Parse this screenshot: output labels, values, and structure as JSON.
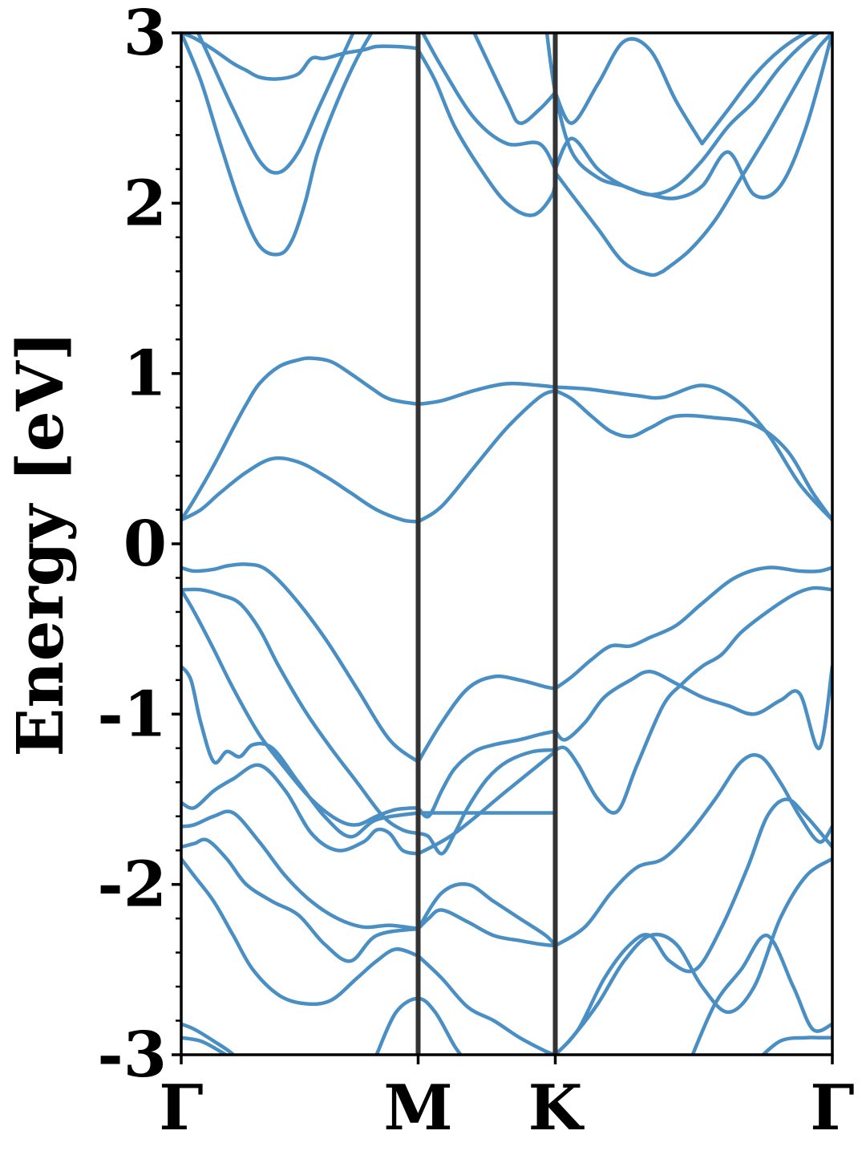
{
  "chart_data": {
    "type": "line",
    "ylabel": "Energy [eV]",
    "ylim": [
      -3,
      3
    ],
    "yticks": [
      "3",
      "2",
      "1",
      "0",
      "-1",
      "-2",
      "-3"
    ],
    "ytick_values": [
      3,
      2,
      1,
      0,
      -1,
      -2,
      -3
    ],
    "kpoint_labels": [
      "Γ",
      "M",
      "K",
      "Γ"
    ],
    "kpoint_positions": [
      0,
      0.3639,
      0.5745,
      1
    ],
    "grid": false,
    "colors": {
      "band": "#4a8fc4",
      "kpoint_line": "#333333",
      "frame": "#000000"
    },
    "series": [
      {
        "x": [
          0,
          0.02,
          0.05,
          0.08,
          0.1,
          0.12,
          0.15,
          0.18,
          0.2,
          0.23,
          0.26,
          0.29,
          0.32,
          0.3639
        ],
        "values": [
          0.14,
          0.26,
          0.46,
          0.68,
          0.82,
          0.94,
          1.04,
          1.08,
          1.09,
          1.07,
          1.0,
          0.92,
          0.85,
          0.82
        ]
      },
      {
        "x": [
          0.3639,
          0.4,
          0.45,
          0.5,
          0.55,
          0.5745
        ],
        "values": [
          0.82,
          0.84,
          0.9,
          0.94,
          0.93,
          0.92
        ]
      },
      {
        "x": [
          0.5745,
          0.62,
          0.66,
          0.7,
          0.74,
          0.8,
          0.85,
          0.9,
          0.95,
          1
        ],
        "values": [
          0.92,
          0.91,
          0.89,
          0.87,
          0.86,
          0.93,
          0.85,
          0.65,
          0.35,
          0.14
        ]
      },
      {
        "x": [
          0,
          0.03,
          0.06,
          0.1,
          0.14,
          0.18,
          0.22,
          0.26,
          0.3,
          0.34,
          0.3639
        ],
        "values": [
          0.14,
          0.2,
          0.3,
          0.42,
          0.5,
          0.48,
          0.4,
          0.3,
          0.2,
          0.14,
          0.13
        ]
      },
      {
        "x": [
          0.3639,
          0.4,
          0.45,
          0.5,
          0.55,
          0.5745
        ],
        "values": [
          0.13,
          0.22,
          0.45,
          0.68,
          0.86,
          0.9
        ]
      },
      {
        "x": [
          0.5745,
          0.6,
          0.63,
          0.66,
          0.69,
          0.72,
          0.76,
          0.82,
          0.88,
          0.93,
          0.97,
          1
        ],
        "values": [
          0.9,
          0.85,
          0.75,
          0.66,
          0.63,
          0.68,
          0.75,
          0.74,
          0.7,
          0.55,
          0.3,
          0.14
        ]
      },
      {
        "x": [
          0,
          0.02,
          0.05,
          0.07,
          0.1,
          0.13,
          0.17,
          0.22,
          0.27,
          0.32,
          0.3639
        ],
        "values": [
          -0.14,
          -0.16,
          -0.15,
          -0.13,
          -0.12,
          -0.15,
          -0.3,
          -0.55,
          -0.85,
          -1.15,
          -1.28
        ]
      },
      {
        "x": [
          0.3639,
          0.4,
          0.44,
          0.48,
          0.52,
          0.56,
          0.5745
        ],
        "values": [
          -1.28,
          -1.05,
          -0.85,
          -0.78,
          -0.8,
          -0.84,
          -0.85
        ]
      },
      {
        "x": [
          0.5745,
          0.6,
          0.63,
          0.66,
          0.69,
          0.72,
          0.76,
          0.8,
          0.85,
          0.9,
          0.95,
          0.98,
          1
        ],
        "values": [
          -0.85,
          -0.78,
          -0.68,
          -0.6,
          -0.6,
          -0.55,
          -0.48,
          -0.35,
          -0.2,
          -0.14,
          -0.16,
          -0.16,
          -0.14
        ]
      },
      {
        "x": [
          0,
          0.03,
          0.06,
          0.09,
          0.12,
          0.15,
          0.19,
          0.23,
          0.27,
          0.31,
          0.34,
          0.3639
        ],
        "values": [
          -0.27,
          -0.27,
          -0.3,
          -0.35,
          -0.5,
          -0.72,
          -0.98,
          -1.2,
          -1.4,
          -1.6,
          -1.68,
          -1.7
        ]
      },
      {
        "x": [
          0.3639,
          0.38,
          0.4,
          0.42,
          0.44,
          0.47,
          0.5,
          0.54,
          0.5745
        ],
        "values": [
          -1.7,
          -1.72,
          -1.82,
          -1.7,
          -1.55,
          -1.38,
          -1.28,
          -1.22,
          -1.21
        ]
      },
      {
        "x": [
          0.5745,
          0.59,
          0.61,
          0.64,
          0.67,
          0.7,
          0.74,
          0.77,
          0.8,
          0.83,
          0.86,
          0.9,
          0.94,
          0.97,
          1
        ],
        "values": [
          -1.21,
          -1.2,
          -1.3,
          -1.5,
          -1.57,
          -1.3,
          -0.95,
          -0.82,
          -0.72,
          -0.65,
          -0.52,
          -0.4,
          -0.3,
          -0.26,
          -0.27
        ]
      },
      {
        "x": [
          0,
          0.02,
          0.05,
          0.08,
          0.12,
          0.16,
          0.2,
          0.24,
          0.27,
          0.3,
          0.33,
          0.3639
        ],
        "values": [
          -0.27,
          -0.4,
          -0.62,
          -0.85,
          -1.12,
          -1.32,
          -1.5,
          -1.62,
          -1.65,
          -1.6,
          -1.56,
          -1.55
        ]
      },
      {
        "x": [
          0.3639,
          0.38,
          0.4,
          0.42,
          0.45,
          0.48,
          0.52,
          0.55,
          0.5745
        ],
        "values": [
          -1.55,
          -1.6,
          -1.45,
          -1.32,
          -1.22,
          -1.18,
          -1.15,
          -1.12,
          -1.1
        ]
      },
      {
        "x": [
          0.5745,
          0.59,
          0.62,
          0.65,
          0.69,
          0.72,
          0.76,
          0.8,
          0.84,
          0.88,
          0.92,
          0.95,
          0.98,
          1
        ],
        "values": [
          -1.1,
          -1.15,
          -1.05,
          -0.9,
          -0.8,
          -0.75,
          -0.82,
          -0.9,
          -0.95,
          -1.0,
          -0.92,
          -0.88,
          -1.2,
          -0.72
        ]
      },
      {
        "x": [
          0,
          0.015,
          0.03,
          0.05,
          0.07,
          0.09,
          0.11,
          0.14,
          0.18,
          0.22,
          0.26,
          0.3,
          0.3639
        ],
        "values": [
          -0.72,
          -0.8,
          -1.05,
          -1.28,
          -1.22,
          -1.25,
          -1.18,
          -1.2,
          -1.4,
          -1.6,
          -1.72,
          -1.62,
          -1.58
        ]
      },
      {
        "x": [
          0.3639,
          0.5745
        ],
        "values": [
          -1.58,
          -1.58
        ]
      },
      {
        "x": [
          0,
          0.02,
          0.05,
          0.08,
          0.12,
          0.16,
          0.2,
          0.24,
          0.28,
          0.3,
          0.32,
          0.34,
          0.3639
        ],
        "values": [
          -1.52,
          -1.55,
          -1.45,
          -1.38,
          -1.3,
          -1.45,
          -1.7,
          -1.8,
          -1.75,
          -1.68,
          -1.7,
          -1.8,
          -1.82
        ]
      },
      {
        "x": [
          0.3639,
          0.42,
          0.5,
          0.5745
        ],
        "values": [
          -1.82,
          -1.7,
          -1.45,
          -1.22
        ]
      },
      {
        "x": [
          0,
          0.02,
          0.05,
          0.08,
          0.12,
          0.16,
          0.2,
          0.24,
          0.28,
          0.32,
          0.3639
        ],
        "values": [
          -1.66,
          -1.65,
          -1.6,
          -1.58,
          -1.75,
          -1.95,
          -2.1,
          -2.2,
          -2.25,
          -2.24,
          -2.26
        ]
      },
      {
        "x": [
          0.3639,
          0.38,
          0.4,
          0.44,
          0.48,
          0.52,
          0.55,
          0.5745
        ],
        "values": [
          -2.26,
          -2.2,
          -2.15,
          -2.22,
          -2.3,
          -2.33,
          -2.35,
          -2.36
        ]
      },
      {
        "x": [
          0.5745,
          0.62,
          0.66,
          0.7,
          0.74,
          0.78,
          0.82,
          0.86,
          0.89,
          0.92,
          0.95,
          0.98,
          1
        ],
        "values": [
          -2.36,
          -2.25,
          -2.05,
          -1.9,
          -1.85,
          -1.7,
          -1.5,
          -1.28,
          -1.25,
          -1.4,
          -1.6,
          -1.75,
          -1.66
        ]
      },
      {
        "x": [
          0,
          0.02,
          0.04,
          0.07,
          0.1,
          0.14,
          0.18,
          0.22,
          0.26,
          0.3,
          0.3639
        ],
        "values": [
          -1.78,
          -1.76,
          -1.74,
          -1.85,
          -2.0,
          -2.1,
          -2.18,
          -2.35,
          -2.45,
          -2.3,
          -2.26
        ]
      },
      {
        "x": [
          0.3639,
          0.4,
          0.44,
          0.48,
          0.52,
          0.56,
          0.5745
        ],
        "values": [
          -2.26,
          -2.05,
          -2.0,
          -2.1,
          -2.2,
          -2.3,
          -2.36
        ]
      },
      {
        "x": [
          0,
          0.02,
          0.05,
          0.08,
          0.11,
          0.15,
          0.19,
          0.23,
          0.27,
          0.3,
          0.33,
          0.3639
        ],
        "values": [
          -1.85,
          -1.95,
          -2.1,
          -2.3,
          -2.5,
          -2.65,
          -2.7,
          -2.68,
          -2.55,
          -2.45,
          -2.38,
          -2.42
        ]
      },
      {
        "x": [
          0.3639,
          0.4,
          0.44,
          0.48,
          0.52,
          0.56,
          0.5745
        ],
        "values": [
          -2.42,
          -2.55,
          -2.72,
          -2.8,
          -2.9,
          -2.98,
          -3.0
        ]
      },
      {
        "x": [
          0.5745,
          0.61,
          0.65,
          0.69,
          0.72,
          0.75,
          0.79,
          0.83,
          0.87,
          0.9,
          0.93,
          0.96,
          1
        ],
        "values": [
          -3.0,
          -2.85,
          -2.55,
          -2.35,
          -2.3,
          -2.45,
          -2.5,
          -2.25,
          -1.9,
          -1.6,
          -1.5,
          -1.6,
          -1.78
        ]
      },
      {
        "x": [
          0.5745,
          0.6,
          0.64,
          0.68,
          0.72,
          0.76,
          0.8,
          0.84,
          0.88,
          0.92,
          0.96,
          1
        ],
        "values": [
          -3.0,
          -2.9,
          -2.7,
          -2.45,
          -2.3,
          -2.35,
          -2.6,
          -2.75,
          -2.6,
          -2.2,
          -1.95,
          -1.85
        ]
      },
      {
        "x": [
          0,
          0.02,
          0.05,
          0.08,
          0.1,
          0.12,
          0.14
        ],
        "values": [
          -2.82,
          -2.85,
          -2.92,
          -3.0,
          -3.1,
          -3.2,
          -3.3
        ]
      },
      {
        "x": [
          0,
          0.03,
          0.06,
          0.09
        ],
        "values": [
          -2.9,
          -2.92,
          -2.98,
          -3.05
        ]
      },
      {
        "x": [
          0.3,
          0.33,
          0.3639,
          0.39,
          0.42,
          0.44
        ],
        "values": [
          -3.0,
          -2.75,
          -2.67,
          -2.75,
          -2.95,
          -3.05
        ]
      },
      {
        "x": [
          0.78,
          0.82,
          0.86,
          0.9,
          0.94,
          0.97,
          1
        ],
        "values": [
          -3.05,
          -2.7,
          -2.5,
          -2.3,
          -2.6,
          -2.85,
          -2.82
        ]
      },
      {
        "x": [
          0.88,
          0.92,
          0.96,
          0.98,
          1
        ],
        "values": [
          -3.05,
          -2.92,
          -2.9,
          -2.9,
          -2.9
        ]
      },
      {
        "x": [
          0,
          0.02,
          0.05,
          0.08,
          0.1
        ],
        "values": [
          3.0,
          2.97,
          2.9,
          2.82,
          2.78
        ]
      },
      {
        "x": [
          0.1,
          0.12,
          0.15,
          0.18,
          0.2,
          0.22,
          0.25,
          0.28,
          0.3,
          0.33,
          0.36,
          0.3639
        ],
        "values": [
          2.78,
          2.74,
          2.73,
          2.76,
          2.85,
          2.85,
          2.88,
          2.9,
          2.92,
          2.92,
          2.91,
          2.9
        ]
      },
      {
        "x": [
          0.3639,
          0.39,
          0.42,
          0.46,
          0.5,
          0.54,
          0.57,
          0.5745
        ],
        "values": [
          2.9,
          2.72,
          2.45,
          2.2,
          2.0,
          1.93,
          2.05,
          2.18
        ]
      },
      {
        "x": [
          0.5745,
          0.6,
          0.64,
          0.68,
          0.72,
          0.74
        ],
        "values": [
          2.18,
          2.05,
          1.85,
          1.65,
          1.58,
          1.6
        ]
      },
      {
        "x": [
          0.74,
          0.78,
          0.82,
          0.86,
          0.9,
          0.93,
          0.96,
          0.98,
          1
        ],
        "values": [
          1.6,
          1.72,
          1.9,
          2.15,
          2.4,
          2.6,
          2.8,
          2.92,
          3.0
        ]
      },
      {
        "x": [
          0,
          0.03,
          0.06,
          0.09,
          0.12,
          0.15,
          0.17,
          0.19,
          0.21,
          0.24,
          0.27,
          0.3
        ],
        "values": [
          3.0,
          2.72,
          2.35,
          2.0,
          1.75,
          1.7,
          1.78,
          2.0,
          2.3,
          2.6,
          2.85,
          3.05
        ]
      },
      {
        "x": [
          0.02,
          0.05,
          0.08,
          0.12,
          0.15,
          0.18,
          0.21,
          0.24,
          0.27
        ],
        "values": [
          3.05,
          2.8,
          2.55,
          2.25,
          2.18,
          2.3,
          2.55,
          2.8,
          3.05
        ]
      },
      {
        "x": [
          0.3639,
          0.4,
          0.45,
          0.5,
          0.55,
          0.5745
        ],
        "values": [
          3.05,
          2.8,
          2.5,
          2.35,
          2.35,
          2.2
        ]
      },
      {
        "x": [
          0.5745,
          0.6,
          0.64,
          0.68,
          0.72,
          0.76,
          0.8,
          0.84,
          0.88,
          0.92,
          0.96,
          1
        ],
        "values": [
          2.2,
          2.38,
          2.2,
          2.1,
          2.05,
          2.03,
          2.1,
          2.3,
          2.05,
          2.1,
          2.45,
          3.0
        ]
      },
      {
        "x": [
          0.45,
          0.5,
          0.52,
          0.55,
          0.5745
        ],
        "values": [
          3.0,
          2.6,
          2.47,
          2.55,
          2.65
        ]
      },
      {
        "x": [
          0.5745,
          0.6,
          0.64,
          0.68,
          0.72,
          0.76,
          0.8
        ],
        "values": [
          2.65,
          2.47,
          2.7,
          2.95,
          2.9,
          2.6,
          2.35
        ]
      },
      {
        "x": [
          0.8,
          0.84,
          0.88,
          0.92,
          0.96,
          1
        ],
        "values": [
          2.35,
          2.55,
          2.75,
          2.9,
          3.0,
          3.05
        ]
      },
      {
        "x": [
          0.56,
          0.5745,
          0.6,
          0.64,
          0.68,
          0.72,
          0.76,
          0.8,
          0.84,
          0.88,
          0.92,
          0.96,
          1
        ],
        "values": [
          3.05,
          2.65,
          2.3,
          2.15,
          2.1,
          2.05,
          2.1,
          2.25,
          2.45,
          2.6,
          2.8,
          2.95,
          3.05
        ]
      }
    ]
  }
}
